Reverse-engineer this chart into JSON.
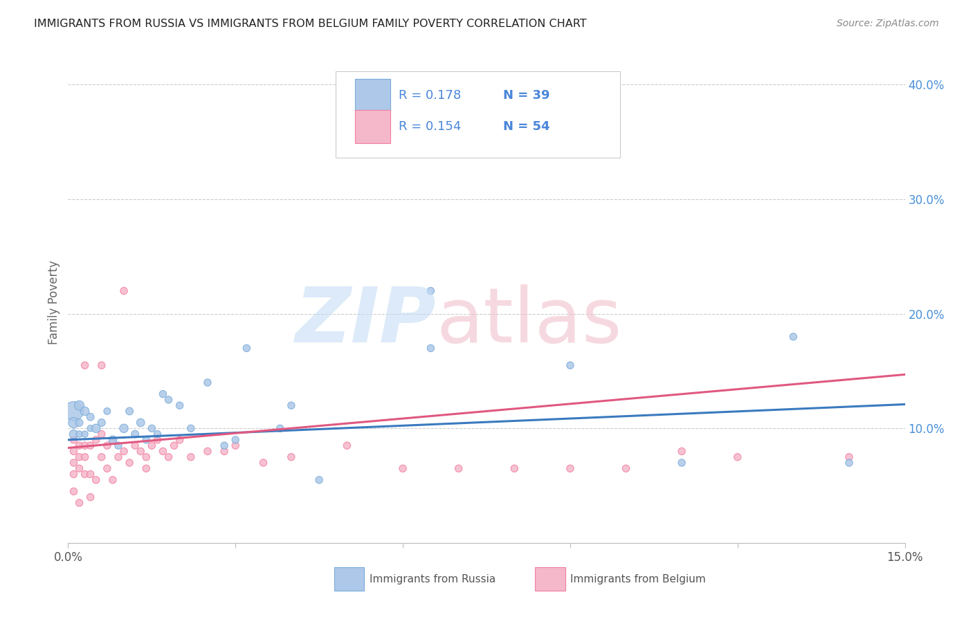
{
  "title": "IMMIGRANTS FROM RUSSIA VS IMMIGRANTS FROM BELGIUM FAMILY POVERTY CORRELATION CHART",
  "source": "Source: ZipAtlas.com",
  "ylabel": "Family Poverty",
  "xlim": [
    0,
    0.15
  ],
  "ylim": [
    0,
    0.42
  ],
  "xticks": [
    0.0,
    0.03,
    0.06,
    0.09,
    0.12,
    0.15
  ],
  "xtick_labels": [
    "0.0%",
    "",
    "",
    "",
    "",
    "15.0%"
  ],
  "yticks_right": [
    0.1,
    0.2,
    0.3,
    0.4
  ],
  "ytick_right_labels": [
    "10.0%",
    "20.0%",
    "30.0%",
    "40.0%"
  ],
  "russia_color": "#adc8e8",
  "belgium_color": "#f5b8cb",
  "russia_edge_color": "#7aabda",
  "belgium_edge_color": "#f07fa0",
  "russia_line_color": "#3a7abf",
  "belgium_line_color": "#e05880",
  "legend_text_color": "#4a86d9",
  "russia_R": "0.178",
  "russia_N": "39",
  "belgium_R": "0.154",
  "belgium_N": "54",
  "watermark_zip_color": "#c5ddf5",
  "watermark_atlas_color": "#f0c0cc",
  "legend_label_russia": "Immigrants from Russia",
  "legend_label_belgium": "Immigrants from Belgium",
  "russia_x": [
    0.001,
    0.001,
    0.001,
    0.002,
    0.002,
    0.002,
    0.003,
    0.003,
    0.004,
    0.004,
    0.005,
    0.006,
    0.007,
    0.008,
    0.009,
    0.01,
    0.011,
    0.012,
    0.013,
    0.014,
    0.015,
    0.016,
    0.017,
    0.018,
    0.02,
    0.022,
    0.025,
    0.028,
    0.03,
    0.032,
    0.038,
    0.04,
    0.045,
    0.065,
    0.065,
    0.09,
    0.11,
    0.13,
    0.14
  ],
  "russia_y": [
    0.115,
    0.105,
    0.095,
    0.12,
    0.105,
    0.095,
    0.115,
    0.095,
    0.11,
    0.1,
    0.1,
    0.105,
    0.115,
    0.09,
    0.085,
    0.1,
    0.115,
    0.095,
    0.105,
    0.09,
    0.1,
    0.095,
    0.13,
    0.125,
    0.12,
    0.1,
    0.14,
    0.085,
    0.09,
    0.17,
    0.1,
    0.12,
    0.055,
    0.22,
    0.17,
    0.155,
    0.07,
    0.18,
    0.07
  ],
  "russia_size": [
    400,
    120,
    80,
    100,
    60,
    45,
    80,
    45,
    60,
    45,
    80,
    60,
    50,
    70,
    55,
    80,
    60,
    60,
    70,
    55,
    55,
    55,
    55,
    55,
    55,
    55,
    55,
    55,
    55,
    55,
    55,
    55,
    55,
    55,
    55,
    55,
    55,
    55,
    55
  ],
  "belgium_x": [
    0.001,
    0.001,
    0.001,
    0.001,
    0.001,
    0.002,
    0.002,
    0.002,
    0.002,
    0.003,
    0.003,
    0.003,
    0.004,
    0.004,
    0.004,
    0.005,
    0.005,
    0.006,
    0.006,
    0.007,
    0.007,
    0.008,
    0.008,
    0.009,
    0.01,
    0.011,
    0.012,
    0.013,
    0.014,
    0.015,
    0.016,
    0.017,
    0.018,
    0.019,
    0.02,
    0.022,
    0.025,
    0.028,
    0.03,
    0.035,
    0.04,
    0.05,
    0.06,
    0.07,
    0.08,
    0.09,
    0.1,
    0.11,
    0.12,
    0.14,
    0.003,
    0.006,
    0.01,
    0.014
  ],
  "belgium_y": [
    0.09,
    0.08,
    0.07,
    0.06,
    0.045,
    0.085,
    0.075,
    0.065,
    0.035,
    0.085,
    0.075,
    0.06,
    0.085,
    0.06,
    0.04,
    0.09,
    0.055,
    0.095,
    0.075,
    0.085,
    0.065,
    0.09,
    0.055,
    0.075,
    0.08,
    0.07,
    0.085,
    0.08,
    0.065,
    0.085,
    0.09,
    0.08,
    0.075,
    0.085,
    0.09,
    0.075,
    0.08,
    0.08,
    0.085,
    0.07,
    0.075,
    0.085,
    0.065,
    0.065,
    0.065,
    0.065,
    0.065,
    0.08,
    0.075,
    0.075,
    0.155,
    0.155,
    0.22,
    0.075
  ],
  "belgium_size": [
    55,
    55,
    55,
    55,
    55,
    55,
    55,
    55,
    55,
    55,
    55,
    55,
    55,
    55,
    55,
    55,
    55,
    55,
    55,
    55,
    55,
    55,
    55,
    55,
    55,
    55,
    55,
    55,
    55,
    55,
    55,
    55,
    55,
    55,
    55,
    55,
    55,
    55,
    55,
    55,
    55,
    55,
    55,
    55,
    55,
    55,
    55,
    55,
    55,
    55,
    55,
    55,
    55,
    55
  ],
  "russia_trend": [
    0.09,
    0.121
  ],
  "belgium_trend": [
    0.083,
    0.147
  ]
}
